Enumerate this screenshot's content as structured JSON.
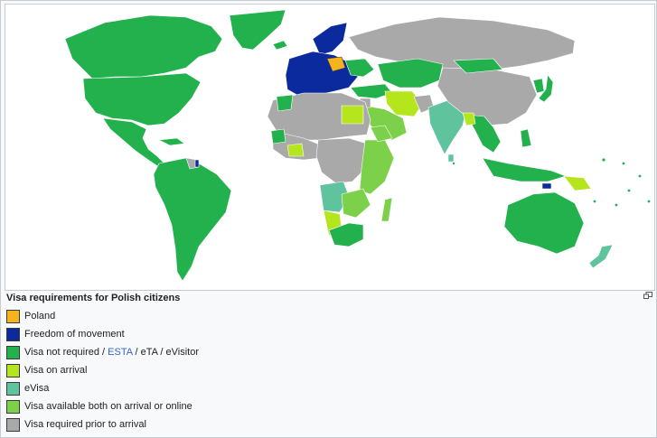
{
  "caption": {
    "title": "Visa requirements for Polish citizens"
  },
  "legend": [
    {
      "id": "poland",
      "label": "Poland",
      "color": "#f5b41e"
    },
    {
      "id": "freedom",
      "label": "Freedom of movement",
      "color": "#0a2a9e"
    },
    {
      "id": "not_required",
      "color": "#22b14c",
      "label_parts": {
        "pre": "Visa not required / ",
        "link": "ESTA",
        "post": " / eTA / eVisitor"
      }
    },
    {
      "id": "on_arrival",
      "label": "Visa on arrival",
      "color": "#b5e61d"
    },
    {
      "id": "evisa",
      "label": "eVisa",
      "color": "#5fc39e"
    },
    {
      "id": "both",
      "label": "Visa available both on arrival or online",
      "color": "#7dd14a"
    },
    {
      "id": "required",
      "label": "Visa required prior to arrival",
      "color": "#a9a9a9"
    }
  ],
  "icons": {
    "magnify": "magnify-icon"
  }
}
